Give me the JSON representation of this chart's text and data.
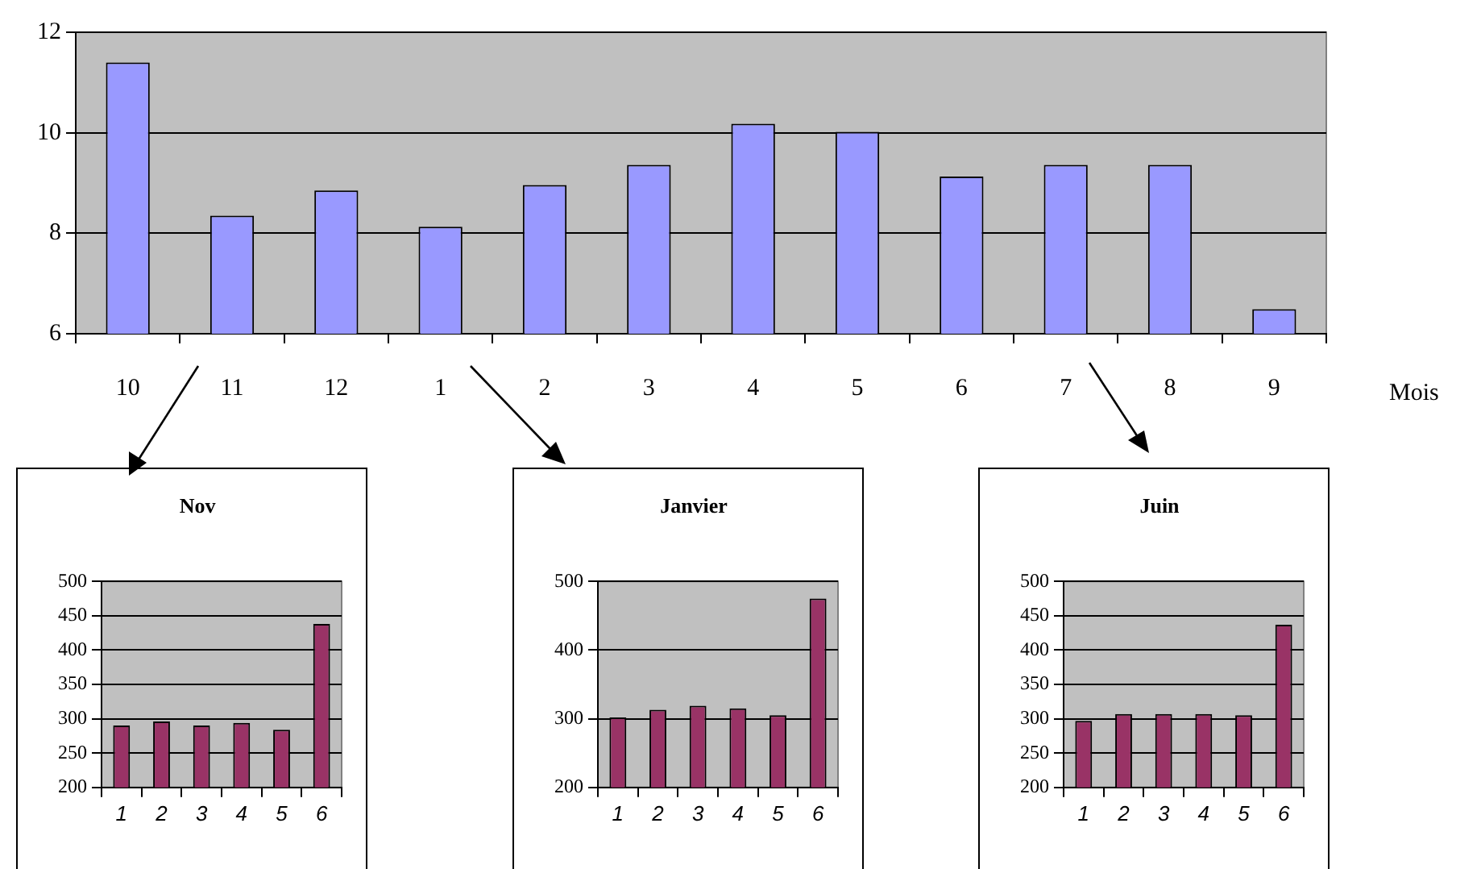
{
  "chart_data": [
    {
      "type": "bar",
      "categories": [
        "10",
        "11",
        "12",
        "1",
        "2",
        "3",
        "4",
        "5",
        "6",
        "7",
        "8",
        "9"
      ],
      "values": [
        11.4,
        8.35,
        8.85,
        8.13,
        8.96,
        9.36,
        10.18,
        10.02,
        9.13,
        9.36,
        9.36,
        6.49
      ],
      "color": "#9999ff",
      "ylim": [
        6,
        12
      ],
      "yticks": [
        6,
        8,
        10,
        12
      ],
      "grid": "y",
      "xlabel": "Mois"
    },
    {
      "type": "bar",
      "title": "Nov",
      "categories": [
        "1",
        "2",
        "3",
        "4",
        "5",
        "6"
      ],
      "values": [
        290,
        296,
        290,
        294,
        284,
        438
      ],
      "color": "#993366",
      "ylim": [
        200,
        500
      ],
      "yticks": [
        200,
        250,
        300,
        350,
        400,
        450,
        500
      ],
      "grid": "y"
    },
    {
      "type": "bar",
      "title": "Janvier",
      "categories": [
        "1",
        "2",
        "3",
        "4",
        "5",
        "6"
      ],
      "values": [
        302,
        313,
        319,
        315,
        305,
        475
      ],
      "color": "#993366",
      "ylim": [
        200,
        500
      ],
      "yticks": [
        200,
        300,
        400,
        500
      ],
      "grid": "y"
    },
    {
      "type": "bar",
      "title": "Juin",
      "categories": [
        "1",
        "2",
        "3",
        "4",
        "5",
        "6"
      ],
      "values": [
        297,
        307,
        307,
        307,
        305,
        437
      ],
      "color": "#993366",
      "ylim": [
        200,
        500
      ],
      "yticks": [
        200,
        250,
        300,
        350,
        400,
        450,
        500
      ],
      "grid": "y"
    }
  ]
}
